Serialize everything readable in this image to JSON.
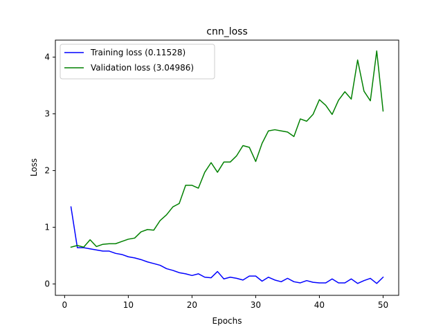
{
  "chart_data": {
    "type": "line",
    "title": "cnn_loss",
    "xlabel": "Epochs",
    "ylabel": "Loss",
    "xlim": [
      -1.45,
      52.45
    ],
    "ylim": [
      -0.2,
      4.3
    ],
    "xticks": [
      0,
      10,
      20,
      30,
      40,
      50
    ],
    "yticks": [
      0,
      1,
      2,
      3,
      4
    ],
    "grid": false,
    "legend_position": "top-left",
    "x": [
      1,
      2,
      3,
      4,
      5,
      6,
      7,
      8,
      9,
      10,
      11,
      12,
      13,
      14,
      15,
      16,
      17,
      18,
      19,
      20,
      21,
      22,
      23,
      24,
      25,
      26,
      27,
      28,
      29,
      30,
      31,
      32,
      33,
      34,
      35,
      36,
      37,
      38,
      39,
      40,
      41,
      42,
      43,
      44,
      45,
      46,
      47,
      48,
      49,
      50
    ],
    "series": [
      {
        "name": "Training loss (0.11528)",
        "color": "#0000ff",
        "values": [
          1.36,
          0.64,
          0.64,
          0.62,
          0.6,
          0.58,
          0.58,
          0.54,
          0.52,
          0.48,
          0.46,
          0.43,
          0.39,
          0.36,
          0.33,
          0.27,
          0.24,
          0.2,
          0.18,
          0.15,
          0.18,
          0.12,
          0.11,
          0.22,
          0.09,
          0.12,
          0.1,
          0.07,
          0.14,
          0.14,
          0.05,
          0.12,
          0.07,
          0.04,
          0.1,
          0.04,
          0.02,
          0.06,
          0.03,
          0.02,
          0.02,
          0.09,
          0.02,
          0.02,
          0.09,
          0.01,
          0.06,
          0.1,
          0.01,
          0.12
        ]
      },
      {
        "name": "Validation loss (3.04986)",
        "color": "#008000",
        "values": [
          0.65,
          0.68,
          0.65,
          0.78,
          0.66,
          0.7,
          0.71,
          0.71,
          0.75,
          0.79,
          0.81,
          0.92,
          0.96,
          0.95,
          1.12,
          1.22,
          1.36,
          1.42,
          1.74,
          1.74,
          1.69,
          1.97,
          2.14,
          1.97,
          2.15,
          2.15,
          2.26,
          2.44,
          2.41,
          2.16,
          2.48,
          2.7,
          2.72,
          2.7,
          2.68,
          2.6,
          2.91,
          2.87,
          2.99,
          3.25,
          3.15,
          2.99,
          3.24,
          3.39,
          3.26,
          3.95,
          3.4,
          3.23,
          4.11,
          3.05
        ]
      }
    ]
  }
}
